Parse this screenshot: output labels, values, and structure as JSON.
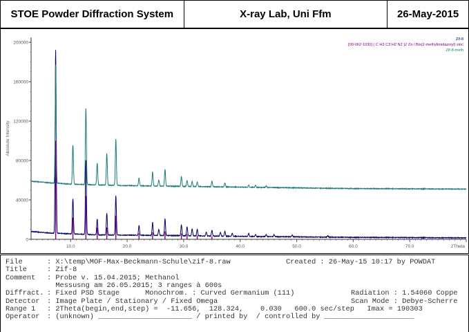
{
  "header": {
    "system": "STOE Powder Diffraction System",
    "lab": "X-ray Lab, Uni Ffm",
    "date": "26-May-2015"
  },
  "chart_data": {
    "type": "line",
    "ylabel": "Absolute Intensity",
    "xlabel": "2Theta",
    "xlim": [
      3,
      80
    ],
    "ylim": [
      0,
      205000
    ],
    "x_ticks": [
      10.0,
      20.0,
      30.0,
      40.0,
      50.0,
      60.0,
      70.0
    ],
    "y_ticks": [
      0,
      40000,
      80000,
      120000,
      160000,
      200000
    ],
    "legend_position": "top-right",
    "legend": [
      {
        "text": "Zif-8",
        "color": "#000066"
      },
      {
        "text": "[00-062-1030] ( C H3 C3 H2 N2 )2 Zn / Bis(2-methylimidazolyl) zinc",
        "color": "#800080"
      },
      {
        "text": "Zif-8-meth",
        "color": "#1f7a7a"
      }
    ],
    "series": [
      {
        "name": "Zif-8",
        "color": "#000066",
        "baseline": [
          [
            3,
            8000
          ],
          [
            6,
            6500
          ],
          [
            8,
            6000
          ],
          [
            15,
            4500
          ],
          [
            25,
            4000
          ],
          [
            40,
            3000
          ],
          [
            60,
            2000
          ],
          [
            80,
            1500
          ]
        ],
        "peaks": [
          [
            7.35,
            186000
          ],
          [
            10.4,
            36000
          ],
          [
            12.7,
            76000
          ],
          [
            14.7,
            16000
          ],
          [
            16.4,
            22000
          ],
          [
            18.0,
            40000
          ],
          [
            22.1,
            10000
          ],
          [
            24.5,
            13000
          ],
          [
            25.6,
            6000
          ],
          [
            26.7,
            17000
          ],
          [
            29.6,
            11000
          ],
          [
            30.6,
            9000
          ],
          [
            31.5,
            7000
          ],
          [
            32.4,
            7000
          ],
          [
            34.0,
            4000
          ],
          [
            35.0,
            6000
          ],
          [
            36.5,
            4000
          ],
          [
            37.3,
            5000
          ],
          [
            38.6,
            3000
          ],
          [
            41.5,
            3000
          ],
          [
            42.7,
            2000
          ],
          [
            44.6,
            2000
          ],
          [
            46.0,
            2000
          ],
          [
            49.2,
            2000
          ],
          [
            55.5,
            1500
          ]
        ]
      },
      {
        "name": "Zif-8-meth",
        "color": "#1f7a7a",
        "baseline": [
          [
            3,
            59000
          ],
          [
            6,
            57500
          ],
          [
            10,
            56000
          ],
          [
            20,
            54500
          ],
          [
            40,
            53000
          ],
          [
            60,
            51500
          ],
          [
            80,
            51000
          ]
        ],
        "peaks": [
          [
            7.35,
            120000
          ],
          [
            10.4,
            40000
          ],
          [
            12.7,
            78000
          ],
          [
            14.7,
            22000
          ],
          [
            16.4,
            32000
          ],
          [
            18.0,
            47000
          ],
          [
            22.1,
            8000
          ],
          [
            24.5,
            14000
          ],
          [
            25.6,
            6000
          ],
          [
            26.7,
            17000
          ],
          [
            29.6,
            10000
          ],
          [
            30.6,
            6000
          ],
          [
            31.5,
            5000
          ],
          [
            32.4,
            5000
          ],
          [
            35.0,
            6000
          ],
          [
            37.3,
            4000
          ],
          [
            41.5,
            2000
          ],
          [
            42.7,
            2000
          ],
          [
            44.6,
            1500
          ]
        ]
      },
      {
        "name": "[00-062-1030] ( C H3 C3 H2 N2 )2 Zn / Bis(2-methylimidazolyl) zinc",
        "color": "#800080",
        "type": "stick",
        "peaks": [
          [
            7.35,
            100000
          ],
          [
            10.4,
            22000
          ],
          [
            12.7,
            44000
          ],
          [
            14.7,
            12000
          ],
          [
            16.4,
            12000
          ],
          [
            18.0,
            24000
          ],
          [
            22.1,
            6000
          ],
          [
            24.5,
            7000
          ],
          [
            26.7,
            8000
          ],
          [
            29.6,
            6000
          ],
          [
            30.6,
            5000
          ],
          [
            32.4,
            4000
          ],
          [
            35.0,
            3000
          ]
        ]
      }
    ]
  },
  "info": {
    "lines": [
      {
        "key": "File",
        "value": ": X:\\temp\\MOF-Max-Beckmann-Schule\\zif-8.raw",
        "extra": "Created : 26-May-15 10:17 by POWDAT"
      },
      {
        "key": "Title",
        "value": ": Zif-8",
        "extra": ""
      },
      {
        "key": "Comment",
        "value": ": Probe v. 15.04.2015; Methanol",
        "extra": ""
      },
      {
        "key": "",
        "value": "  Messusng am 26.05.2015; 3 ranges à 600s",
        "extra": ""
      },
      {
        "key": "Diffract.",
        "value": ": Fixed PSD Stage      Monochrom. : Curved Germanium (111)",
        "extra": "Radiation : 1.54060 Coppe"
      },
      {
        "key": "Detector",
        "value": ": Image Plate / Stationary / Fixed Omega",
        "extra": "Scan Mode : Debye-Scherre"
      },
      {
        "key": "Range 1",
        "value": ": 2Theta(begin,end,step) =  -11.656,  128.324,    0.030   600.0 sec/step   Imax = 190303",
        "extra": ""
      },
      {
        "key": "Operator",
        "value": ": (unknown) ______________________ / printed by  / controlled by _____________________",
        "extra": ""
      }
    ]
  }
}
